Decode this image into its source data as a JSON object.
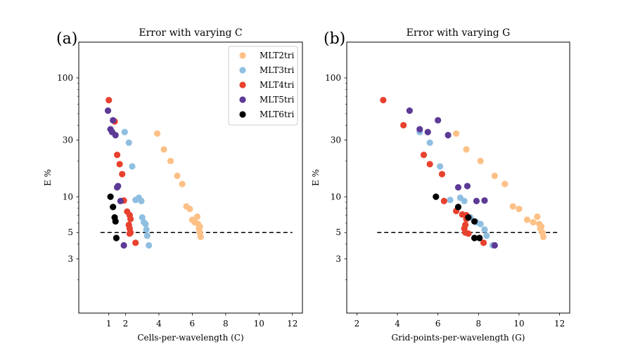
{
  "chart_data": [
    {
      "type": "scatter",
      "panel_tag": "(a)",
      "title": "Error with varying C",
      "xlabel": "Cells-per-wavelength (C)",
      "ylabel": "E %",
      "xlim": [
        -0.8,
        12.6
      ],
      "ylim": [
        1.05,
        200
      ],
      "yscale": "log",
      "xticks": [
        1,
        2,
        4,
        6,
        8,
        10,
        12
      ],
      "yticks": [
        3,
        5,
        10,
        30,
        100
      ],
      "reference_line": {
        "y": 5,
        "x_range": [
          0.5,
          12
        ],
        "style": "dashed"
      },
      "legend": {
        "position": "top-right"
      },
      "series": [
        {
          "name": "MLT2tri",
          "color": "#fdc086",
          "points": [
            [
              3.9,
              34
            ],
            [
              4.3,
              25
            ],
            [
              4.7,
              20
            ],
            [
              5.1,
              15
            ],
            [
              5.4,
              12.8
            ],
            [
              5.65,
              8.3
            ],
            [
              5.85,
              7.9
            ],
            [
              6.0,
              6.4
            ],
            [
              6.15,
              6.1
            ],
            [
              6.3,
              6.8
            ],
            [
              6.35,
              5.9
            ],
            [
              6.4,
              5.4
            ],
            [
              6.45,
              5.0
            ],
            [
              6.5,
              4.6
            ],
            [
              6.45,
              5.6
            ]
          ]
        },
        {
          "name": "MLT3tri",
          "color": "#8fbfe0",
          "points": [
            [
              1.95,
              35
            ],
            [
              2.2,
              28.5
            ],
            [
              2.4,
              18
            ],
            [
              2.6,
              9.4
            ],
            [
              2.8,
              9.8
            ],
            [
              2.95,
              9.2
            ],
            [
              3.0,
              6.7
            ],
            [
              3.1,
              6.1
            ],
            [
              3.2,
              5.9
            ],
            [
              3.25,
              5.3
            ],
            [
              3.3,
              4.7
            ],
            [
              3.4,
              3.9
            ]
          ]
        },
        {
          "name": "MLT4tri",
          "color": "#e8412e",
          "points": [
            [
              1.0,
              65
            ],
            [
              1.35,
              43
            ],
            [
              1.5,
              22.5
            ],
            [
              1.65,
              18.8
            ],
            [
              1.8,
              15.5
            ],
            [
              1.9,
              9.3
            ],
            [
              2.1,
              7.5
            ],
            [
              2.25,
              7.0
            ],
            [
              2.3,
              6.5
            ],
            [
              2.2,
              5.8
            ],
            [
              2.25,
              5.4
            ],
            [
              2.3,
              5.0
            ],
            [
              2.25,
              4.9
            ],
            [
              2.6,
              4.1
            ]
          ]
        },
        {
          "name": "MLT5tri",
          "color": "#5c3a96",
          "points": [
            [
              0.95,
              53
            ],
            [
              1.25,
              44
            ],
            [
              1.1,
              37
            ],
            [
              1.2,
              35
            ],
            [
              1.4,
              33
            ],
            [
              1.5,
              12
            ],
            [
              1.55,
              12.3
            ],
            [
              1.7,
              9.2
            ],
            [
              1.9,
              3.9
            ]
          ]
        },
        {
          "name": "MLT6tri",
          "color": "#000000",
          "points": [
            [
              1.1,
              10
            ],
            [
              1.25,
              8.2
            ],
            [
              1.35,
              6.7
            ],
            [
              1.4,
              6.2
            ],
            [
              1.45,
              4.5
            ]
          ]
        }
      ]
    },
    {
      "type": "scatter",
      "panel_tag": "(b)",
      "title": "Error with varying G",
      "xlabel": "Grid-points-per-wavelength (G)",
      "ylabel": "E %",
      "xlim": [
        1.5,
        12.5
      ],
      "ylim": [
        1.05,
        200
      ],
      "yscale": "log",
      "xticks": [
        2,
        4,
        6,
        8,
        10,
        12
      ],
      "yticks": [
        3,
        5,
        10,
        30,
        100
      ],
      "reference_line": {
        "y": 5,
        "x_range": [
          3,
          12
        ],
        "style": "dashed"
      },
      "legend": null,
      "series": [
        {
          "name": "MLT2tri",
          "color": "#fdc086",
          "points": [
            [
              6.9,
              34
            ],
            [
              7.4,
              25
            ],
            [
              8.1,
              20
            ],
            [
              8.8,
              15
            ],
            [
              9.3,
              12.8
            ],
            [
              9.7,
              8.3
            ],
            [
              10.0,
              7.9
            ],
            [
              10.4,
              6.4
            ],
            [
              10.7,
              6.1
            ],
            [
              10.9,
              6.8
            ],
            [
              11.0,
              5.9
            ],
            [
              11.05,
              5.4
            ],
            [
              11.15,
              5.0
            ],
            [
              11.2,
              4.6
            ],
            [
              11.1,
              5.6
            ]
          ]
        },
        {
          "name": "MLT3tri",
          "color": "#8fbfe0",
          "points": [
            [
              5.1,
              35
            ],
            [
              5.6,
              28.5
            ],
            [
              6.1,
              18
            ],
            [
              6.6,
              9.4
            ],
            [
              7.1,
              9.8
            ],
            [
              7.3,
              9.2
            ],
            [
              7.6,
              6.7
            ],
            [
              7.9,
              6.1
            ],
            [
              8.1,
              5.9
            ],
            [
              8.3,
              5.3
            ],
            [
              8.4,
              4.7
            ],
            [
              8.7,
              3.9
            ]
          ]
        },
        {
          "name": "MLT4tri",
          "color": "#e8412e",
          "points": [
            [
              3.3,
              65
            ],
            [
              4.3,
              40
            ],
            [
              5.3,
              22.5
            ],
            [
              5.6,
              18.8
            ],
            [
              6.2,
              15.5
            ],
            [
              6.3,
              9.2
            ],
            [
              6.9,
              7.6
            ],
            [
              7.2,
              7.1
            ],
            [
              7.4,
              7.0
            ],
            [
              7.4,
              6.5
            ],
            [
              7.35,
              5.8
            ],
            [
              7.3,
              5.4
            ],
            [
              7.35,
              5.0
            ],
            [
              7.5,
              4.9
            ],
            [
              8.25,
              4.1
            ]
          ]
        },
        {
          "name": "MLT5tri",
          "color": "#5c3a96",
          "points": [
            [
              4.6,
              53
            ],
            [
              5.1,
              37
            ],
            [
              5.5,
              35
            ],
            [
              6.0,
              44
            ],
            [
              6.5,
              33
            ],
            [
              7.0,
              12
            ],
            [
              7.45,
              12.3
            ],
            [
              7.9,
              9.2
            ],
            [
              8.3,
              9.3
            ],
            [
              8.8,
              3.9
            ]
          ]
        },
        {
          "name": "MLT6tri",
          "color": "#000000",
          "points": [
            [
              5.9,
              10
            ],
            [
              7.0,
              8.2
            ],
            [
              7.5,
              6.7
            ],
            [
              7.8,
              6.2
            ],
            [
              7.8,
              4.5
            ],
            [
              8.05,
              4.5
            ]
          ]
        }
      ]
    }
  ]
}
